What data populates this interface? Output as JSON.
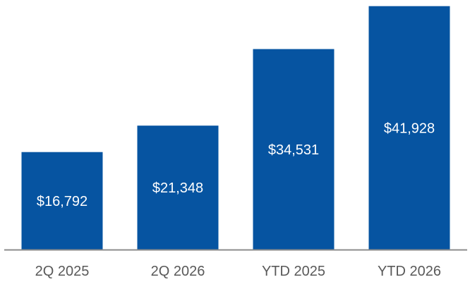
{
  "chart_data": {
    "type": "bar",
    "categories": [
      "2Q 2025",
      "2Q 2026",
      "YTD 2025",
      "YTD 2026"
    ],
    "values": [
      16792,
      21348,
      34531,
      41928
    ],
    "data_labels": [
      "$16,792",
      "$21,348",
      "$34,531",
      "$41,928"
    ],
    "title": "",
    "xlabel": "",
    "ylabel": "",
    "ylim": [
      0,
      42500
    ],
    "grid": false,
    "legend": "none",
    "colors": {
      "bar": "#0654A1",
      "axis": "#8C8C8C",
      "tick_text": "#595959",
      "label_text": "#FFFFFF"
    }
  }
}
